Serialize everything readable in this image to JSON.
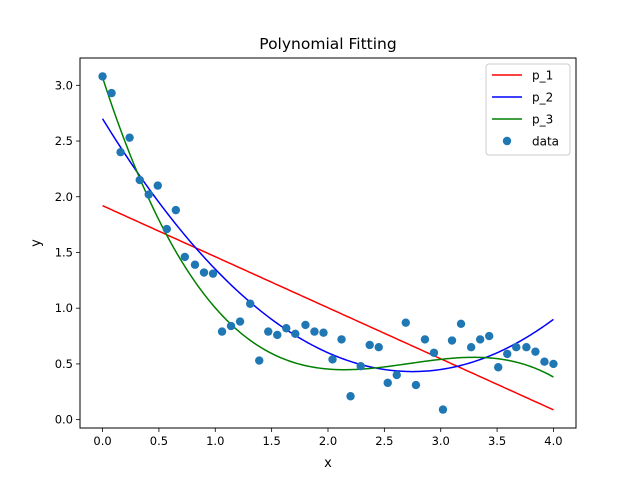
{
  "chart_data": {
    "type": "scatter",
    "title": "Polynomial Fitting",
    "xlabel": "x",
    "ylabel": "y",
    "xlim": [
      -0.2,
      4.2
    ],
    "ylim": [
      -0.075,
      3.245
    ],
    "xticks": [
      0.0,
      0.5,
      1.0,
      1.5,
      2.0,
      2.5,
      3.0,
      3.5,
      4.0
    ],
    "xtick_labels": [
      "0.0",
      "0.5",
      "1.0",
      "1.5",
      "2.0",
      "2.5",
      "3.0",
      "3.5",
      "4.0"
    ],
    "yticks": [
      0.0,
      0.5,
      1.0,
      1.5,
      2.0,
      2.5,
      3.0
    ],
    "ytick_labels": [
      "0.0",
      "0.5",
      "1.0",
      "1.5",
      "2.0",
      "2.5",
      "3.0"
    ],
    "grid": false,
    "legend_position": "top-right",
    "lines": [
      {
        "name": "p_1",
        "color": "#ff0000",
        "coeffs": [
          1.92,
          -0.458
        ]
      },
      {
        "name": "p_2",
        "color": "#0000ff",
        "coeffs": [
          2.7,
          -1.65,
          0.3
        ]
      },
      {
        "name": "p_3",
        "color": "#008000",
        "coeffs": [
          3.07,
          -3.12,
          1.2,
          -0.147
        ]
      }
    ],
    "scatter": {
      "name": "data",
      "color": "#1f77b4",
      "x": [
        0.0,
        0.08,
        0.16,
        0.24,
        0.33,
        0.41,
        0.49,
        0.57,
        0.65,
        0.73,
        0.82,
        0.9,
        0.98,
        1.06,
        1.14,
        1.22,
        1.31,
        1.39,
        1.47,
        1.55,
        1.63,
        1.71,
        1.8,
        1.88,
        1.96,
        2.04,
        2.12,
        2.2,
        2.29,
        2.37,
        2.45,
        2.53,
        2.61,
        2.69,
        2.78,
        2.86,
        2.94,
        3.02,
        3.1,
        3.18,
        3.27,
        3.35,
        3.43,
        3.51,
        3.59,
        3.67,
        3.76,
        3.84,
        3.92,
        4.0
      ],
      "y": [
        3.08,
        2.93,
        2.4,
        2.53,
        2.15,
        2.02,
        2.1,
        1.71,
        1.88,
        1.46,
        1.39,
        1.32,
        1.31,
        0.79,
        0.84,
        0.88,
        1.04,
        0.53,
        0.79,
        0.76,
        0.82,
        0.77,
        0.85,
        0.79,
        0.78,
        0.54,
        0.72,
        0.21,
        0.48,
        0.67,
        0.65,
        0.33,
        0.4,
        0.87,
        0.31,
        0.72,
        0.6,
        0.09,
        0.71,
        0.86,
        0.65,
        0.72,
        0.75,
        0.47,
        0.59,
        0.65,
        0.65,
        0.61,
        0.52,
        0.5
      ]
    }
  }
}
